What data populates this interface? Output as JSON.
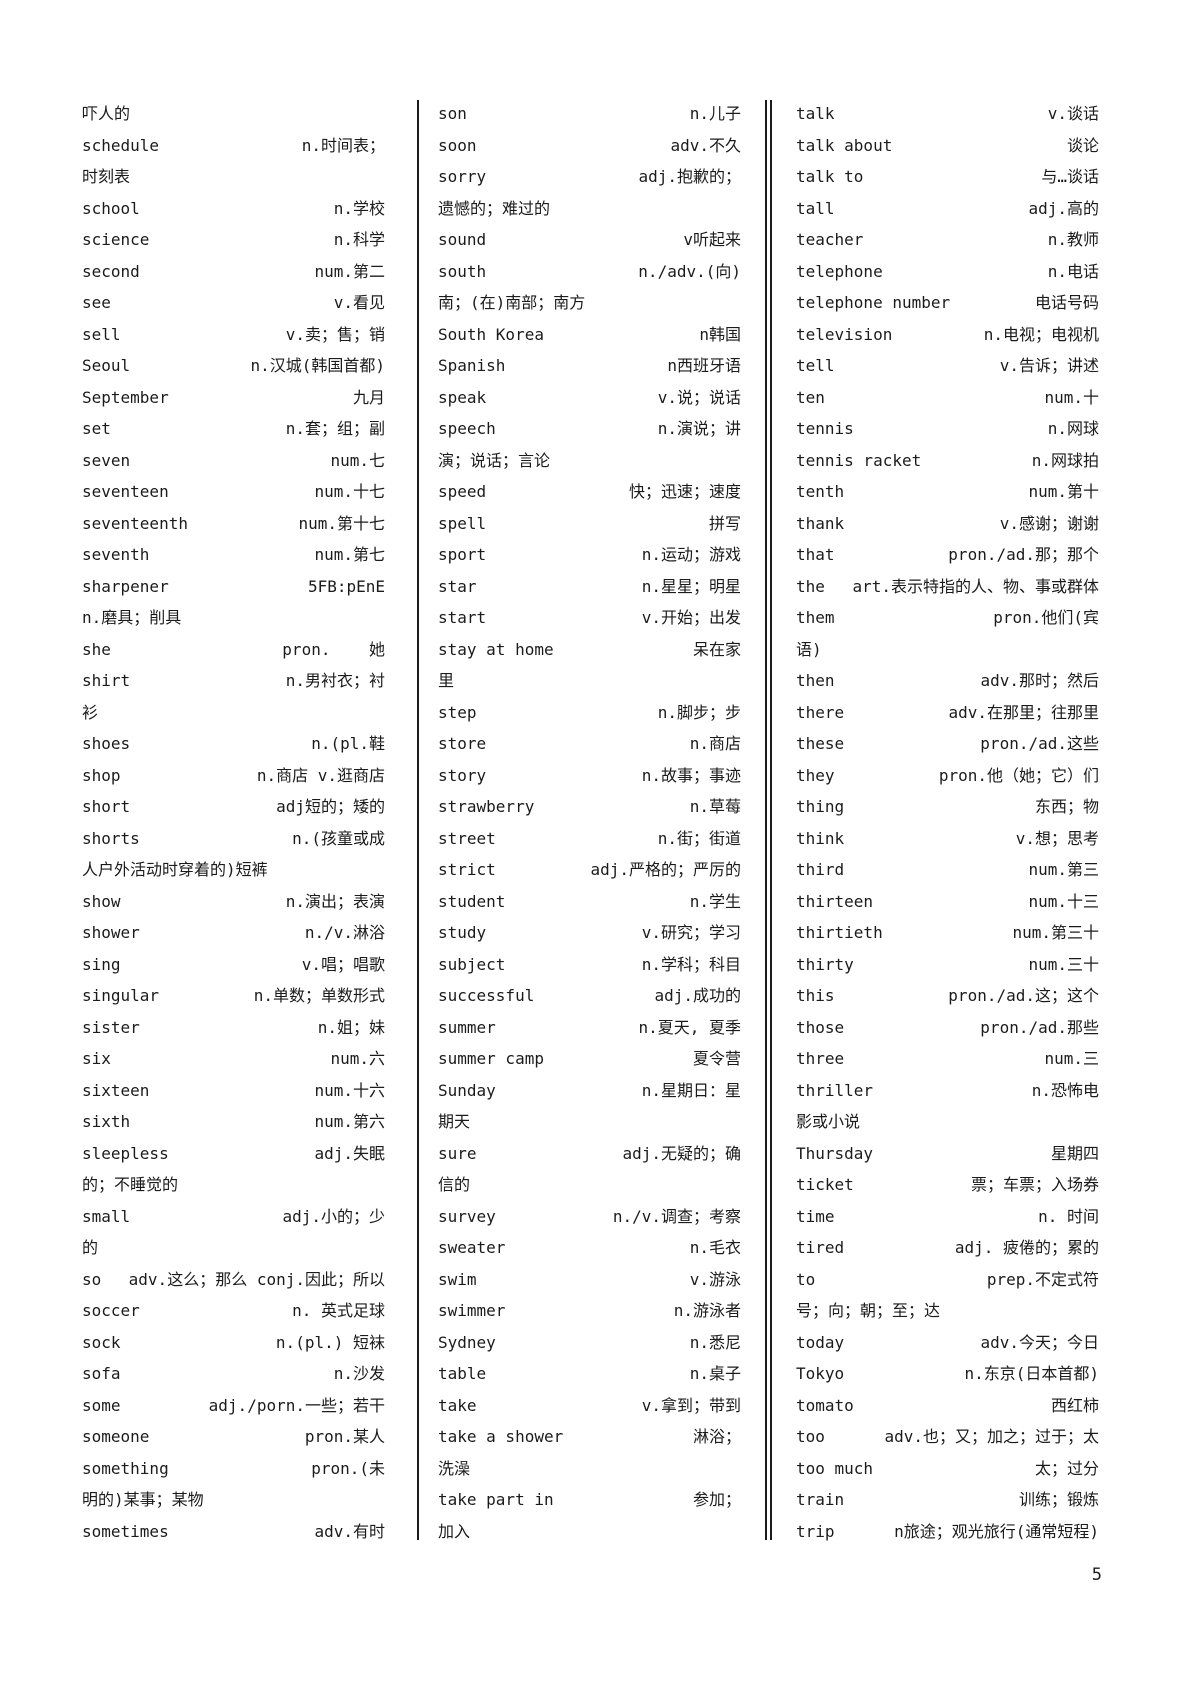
{
  "page": {
    "number": "5"
  },
  "colors": {
    "text": "#1b1b1b",
    "background": "#ffffff"
  },
  "columns": [
    {
      "lines": [
        {
          "w": "吓人的",
          "d": ""
        },
        {
          "w": "schedule",
          "d": "n.时间表；"
        },
        {
          "w": "时刻表",
          "d": ""
        },
        {
          "w": "school",
          "d": "n.学校"
        },
        {
          "w": "science",
          "d": "n.科学"
        },
        {
          "w": "second",
          "d": "num.第二"
        },
        {
          "w": "see",
          "d": "v.看见"
        },
        {
          "w": "sell",
          "d": "v.卖；售；销"
        },
        {
          "w": "Seoul",
          "d": "n.汉城(韩国首都)"
        },
        {
          "w": "September",
          "d": "九月"
        },
        {
          "w": "set",
          "d": "n.套；组；副"
        },
        {
          "w": "seven",
          "d": "num.七"
        },
        {
          "w": "seventeen",
          "d": "num.十七"
        },
        {
          "w": "seventeenth",
          "d": "num.第十七"
        },
        {
          "w": "seventh",
          "d": "num.第七"
        },
        {
          "w": "sharpener",
          "d": "5FB:pEnE"
        },
        {
          "w": "n.磨具；削具",
          "d": ""
        },
        {
          "w": "she",
          "d": "pron.    她"
        },
        {
          "w": "shirt",
          "d": "n.男衬衣；衬"
        },
        {
          "w": "衫",
          "d": ""
        },
        {
          "w": "shoes",
          "d": "n.(pl.鞋"
        },
        {
          "w": "shop",
          "d": "n.商店 v.逛商店"
        },
        {
          "w": "short",
          "d": "adj短的；矮的"
        },
        {
          "w": "shorts",
          "d": "n.(孩童或成"
        },
        {
          "w": "人户外活动时穿着的)短裤",
          "d": ""
        },
        {
          "w": "show",
          "d": "n.演出；表演"
        },
        {
          "w": "shower",
          "d": "n./v.淋浴"
        },
        {
          "w": "sing",
          "d": "v.唱；唱歌"
        },
        {
          "w": "singular",
          "d": "n.单数；单数形式"
        },
        {
          "w": "sister",
          "d": "n.姐；妹"
        },
        {
          "w": "six",
          "d": "num.六"
        },
        {
          "w": "sixteen",
          "d": "num.十六"
        },
        {
          "w": "sixth",
          "d": "num.第六"
        },
        {
          "w": "sleepless",
          "d": "adj.失眠"
        },
        {
          "w": "的；不睡觉的",
          "d": ""
        },
        {
          "w": "small",
          "d": "adj.小的；少"
        },
        {
          "w": "的",
          "d": ""
        },
        {
          "w": "so",
          "d": "adv.这么；那么 conj.因此；所以"
        },
        {
          "w": "soccer",
          "d": "n. 英式足球"
        },
        {
          "w": "sock",
          "d": "n.(pl.) 短袜"
        },
        {
          "w": "sofa",
          "d": "n.沙发"
        },
        {
          "w": "some",
          "d": "adj./porn.一些；若干"
        },
        {
          "w": "someone",
          "d": "pron.某人"
        },
        {
          "w": "something",
          "d": "pron.(未"
        },
        {
          "w": "明的)某事；某物",
          "d": ""
        },
        {
          "w": "sometimes",
          "d": "adv.有时"
        }
      ]
    },
    {
      "lines": [
        {
          "w": "son",
          "d": "n.儿子"
        },
        {
          "w": "soon",
          "d": "adv.不久"
        },
        {
          "w": "sorry",
          "d": "adj.抱歉的；"
        },
        {
          "w": "遗憾的；难过的",
          "d": ""
        },
        {
          "w": "sound",
          "d": "v听起来"
        },
        {
          "w": "south",
          "d": "n./adv.(向)"
        },
        {
          "w": "南；(在)南部；南方",
          "d": ""
        },
        {
          "w": "South Korea",
          "d": "n韩国"
        },
        {
          "w": "Spanish",
          "d": "n西班牙语"
        },
        {
          "w": "speak",
          "d": "v.说；说话"
        },
        {
          "w": "speech",
          "d": "n.演说；讲"
        },
        {
          "w": "演；说话；言论",
          "d": ""
        },
        {
          "w": "speed",
          "d": "快；迅速；速度"
        },
        {
          "w": "spell",
          "d": "拼写"
        },
        {
          "w": "sport",
          "d": "n.运动；游戏"
        },
        {
          "w": "star",
          "d": "n.星星；明星"
        },
        {
          "w": "start",
          "d": "v.开始；出发"
        },
        {
          "w": "stay at home",
          "d": "呆在家"
        },
        {
          "w": "里",
          "d": ""
        },
        {
          "w": "step",
          "d": "n.脚步；步"
        },
        {
          "w": "store",
          "d": "n.商店"
        },
        {
          "w": "story",
          "d": "n.故事；事迹"
        },
        {
          "w": "strawberry",
          "d": "n.草莓"
        },
        {
          "w": "street",
          "d": "n.街；街道"
        },
        {
          "w": "strict",
          "d": "adj.严格的；严厉的"
        },
        {
          "w": "student",
          "d": "n.学生"
        },
        {
          "w": "study",
          "d": "v.研究；学习"
        },
        {
          "w": "subject",
          "d": "n.学科；科目"
        },
        {
          "w": "successful",
          "d": "adj.成功的"
        },
        {
          "w": "summer",
          "d": "n.夏天, 夏季"
        },
        {
          "w": "summer camp",
          "d": "夏令营"
        },
        {
          "w": "Sunday",
          "d": "n.星期日：星"
        },
        {
          "w": "期天",
          "d": ""
        },
        {
          "w": "sure",
          "d": "adj.无疑的；确"
        },
        {
          "w": "信的",
          "d": ""
        },
        {
          "w": "survey",
          "d": "n./v.调查；考察"
        },
        {
          "w": "sweater",
          "d": "n.毛衣"
        },
        {
          "w": "swim",
          "d": "v.游泳"
        },
        {
          "w": "swimmer",
          "d": "n.游泳者"
        },
        {
          "w": "Sydney",
          "d": "n.悉尼"
        },
        {
          "w": "table",
          "d": "n.桌子"
        },
        {
          "w": "take",
          "d": "v.拿到；带到"
        },
        {
          "w": "take a shower",
          "d": "淋浴；"
        },
        {
          "w": "洗澡",
          "d": ""
        },
        {
          "w": "take part in",
          "d": "参加；"
        },
        {
          "w": "加入",
          "d": ""
        }
      ]
    },
    {
      "lines": [
        {
          "w": "talk",
          "d": "v.谈话"
        },
        {
          "w": "talk about",
          "d": "谈论"
        },
        {
          "w": "talk to",
          "d": "与…谈话"
        },
        {
          "w": "tall",
          "d": "adj.高的"
        },
        {
          "w": "teacher",
          "d": "n.教师"
        },
        {
          "w": "telephone",
          "d": "n.电话"
        },
        {
          "w": "telephone number",
          "d": "电话号码"
        },
        {
          "w": "television",
          "d": "n.电视；电视机"
        },
        {
          "w": "tell",
          "d": "v.告诉；讲述"
        },
        {
          "w": "ten",
          "d": "num.十"
        },
        {
          "w": "tennis",
          "d": "n.网球"
        },
        {
          "w": "tennis racket",
          "d": "n.网球拍"
        },
        {
          "w": "tenth",
          "d": "num.第十"
        },
        {
          "w": "thank",
          "d": "v.感谢；谢谢"
        },
        {
          "w": "that",
          "d": "pron./ad.那；那个"
        },
        {
          "w": "the",
          "d": "art.表示特指的人、物、事或群体"
        },
        {
          "w": "them",
          "d": "pron.他们(宾"
        },
        {
          "w": "语)",
          "d": ""
        },
        {
          "w": "then",
          "d": "adv.那时；然后"
        },
        {
          "w": "there",
          "d": "adv.在那里；往那里"
        },
        {
          "w": "these",
          "d": "pron./ad.这些"
        },
        {
          "w": "they",
          "d": "pron.他（她；它）们"
        },
        {
          "w": "thing",
          "d": "东西；物"
        },
        {
          "w": "think",
          "d": "v.想；思考"
        },
        {
          "w": "third",
          "d": "num.第三"
        },
        {
          "w": "thirteen",
          "d": "num.十三"
        },
        {
          "w": "thirtieth",
          "d": "num.第三十"
        },
        {
          "w": "thirty",
          "d": "num.三十"
        },
        {
          "w": "this",
          "d": "pron./ad.这；这个"
        },
        {
          "w": "those",
          "d": "pron./ad.那些"
        },
        {
          "w": "three",
          "d": "num.三"
        },
        {
          "w": "thriller",
          "d": "n.恐怖电"
        },
        {
          "w": "影或小说",
          "d": ""
        },
        {
          "w": "Thursday",
          "d": "星期四"
        },
        {
          "w": "ticket",
          "d": "票；车票；入场券"
        },
        {
          "w": "time",
          "d": "n. 时间"
        },
        {
          "w": "tired",
          "d": "adj. 疲倦的；累的"
        },
        {
          "w": "to",
          "d": "prep.不定式符"
        },
        {
          "w": "号；向；朝；至；达",
          "d": ""
        },
        {
          "w": "today",
          "d": "adv.今天；今日"
        },
        {
          "w": "Tokyo",
          "d": "n.东京(日本首都)"
        },
        {
          "w": "tomato",
          "d": "西红柿"
        },
        {
          "w": "too",
          "d": "adv.也；又；加之；过于；太"
        },
        {
          "w": "too much",
          "d": "太；过分"
        },
        {
          "w": "train",
          "d": "训练；锻炼"
        },
        {
          "w": "trip",
          "d": "n旅途；观光旅行(通常短程)"
        }
      ]
    }
  ]
}
